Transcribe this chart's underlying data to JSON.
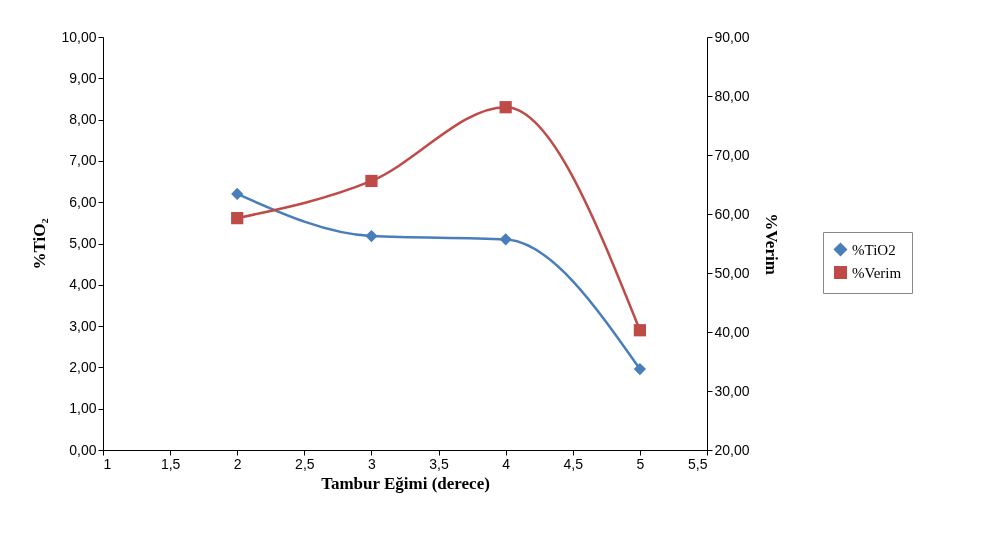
{
  "chart_data": {
    "type": "line",
    "xlabel": "Tambur Eğimi (derece)",
    "ylabel": "%TiO₂",
    "y2label": "%Verim",
    "x": [
      2,
      3,
      4,
      5
    ],
    "series": [
      {
        "name": "%TiO2",
        "color": "#4a7ebb",
        "marker": "diamond",
        "values": [
          6.2,
          5.18,
          5.1,
          1.96
        ]
      },
      {
        "name": "%Verim",
        "color": "#be4b48",
        "marker": "square",
        "axis": "y2",
        "values": [
          59.3,
          65.6,
          78.1,
          40.3
        ]
      }
    ],
    "xlim": [
      1,
      5.5
    ],
    "xticks": [
      1,
      {
        "value": 1.5,
        "label": "1,5"
      },
      2,
      {
        "value": 2.5,
        "label": "2,5"
      },
      3,
      {
        "value": 3.5,
        "label": "3,5"
      },
      4,
      {
        "value": 4.5,
        "label": "4,5"
      },
      5,
      {
        "value": 5.5,
        "label": "5,5"
      }
    ],
    "ylim": [
      0,
      10
    ],
    "yticks": [
      {
        "value": 0,
        "label": "0,00"
      },
      {
        "value": 1,
        "label": "1,00"
      },
      {
        "value": 2,
        "label": "2,00"
      },
      {
        "value": 3,
        "label": "3,00"
      },
      {
        "value": 4,
        "label": "4,00"
      },
      {
        "value": 5,
        "label": "5,00"
      },
      {
        "value": 6,
        "label": "6,00"
      },
      {
        "value": 7,
        "label": "7,00"
      },
      {
        "value": 8,
        "label": "8,00"
      },
      {
        "value": 9,
        "label": "9,00"
      },
      {
        "value": 10,
        "label": "10,00"
      }
    ],
    "y2lim": [
      20,
      90
    ],
    "y2ticks": [
      {
        "value": 20,
        "label": "20,00"
      },
      {
        "value": 30,
        "label": "30,00"
      },
      {
        "value": 40,
        "label": "40,00"
      },
      {
        "value": 50,
        "label": "50,00"
      },
      {
        "value": 60,
        "label": "60,00"
      },
      {
        "value": 70,
        "label": "70,00"
      },
      {
        "value": 80,
        "label": "80,00"
      },
      {
        "value": 90,
        "label": "90,00"
      }
    ],
    "legend": "right",
    "grid": false,
    "line_style": "solid"
  }
}
